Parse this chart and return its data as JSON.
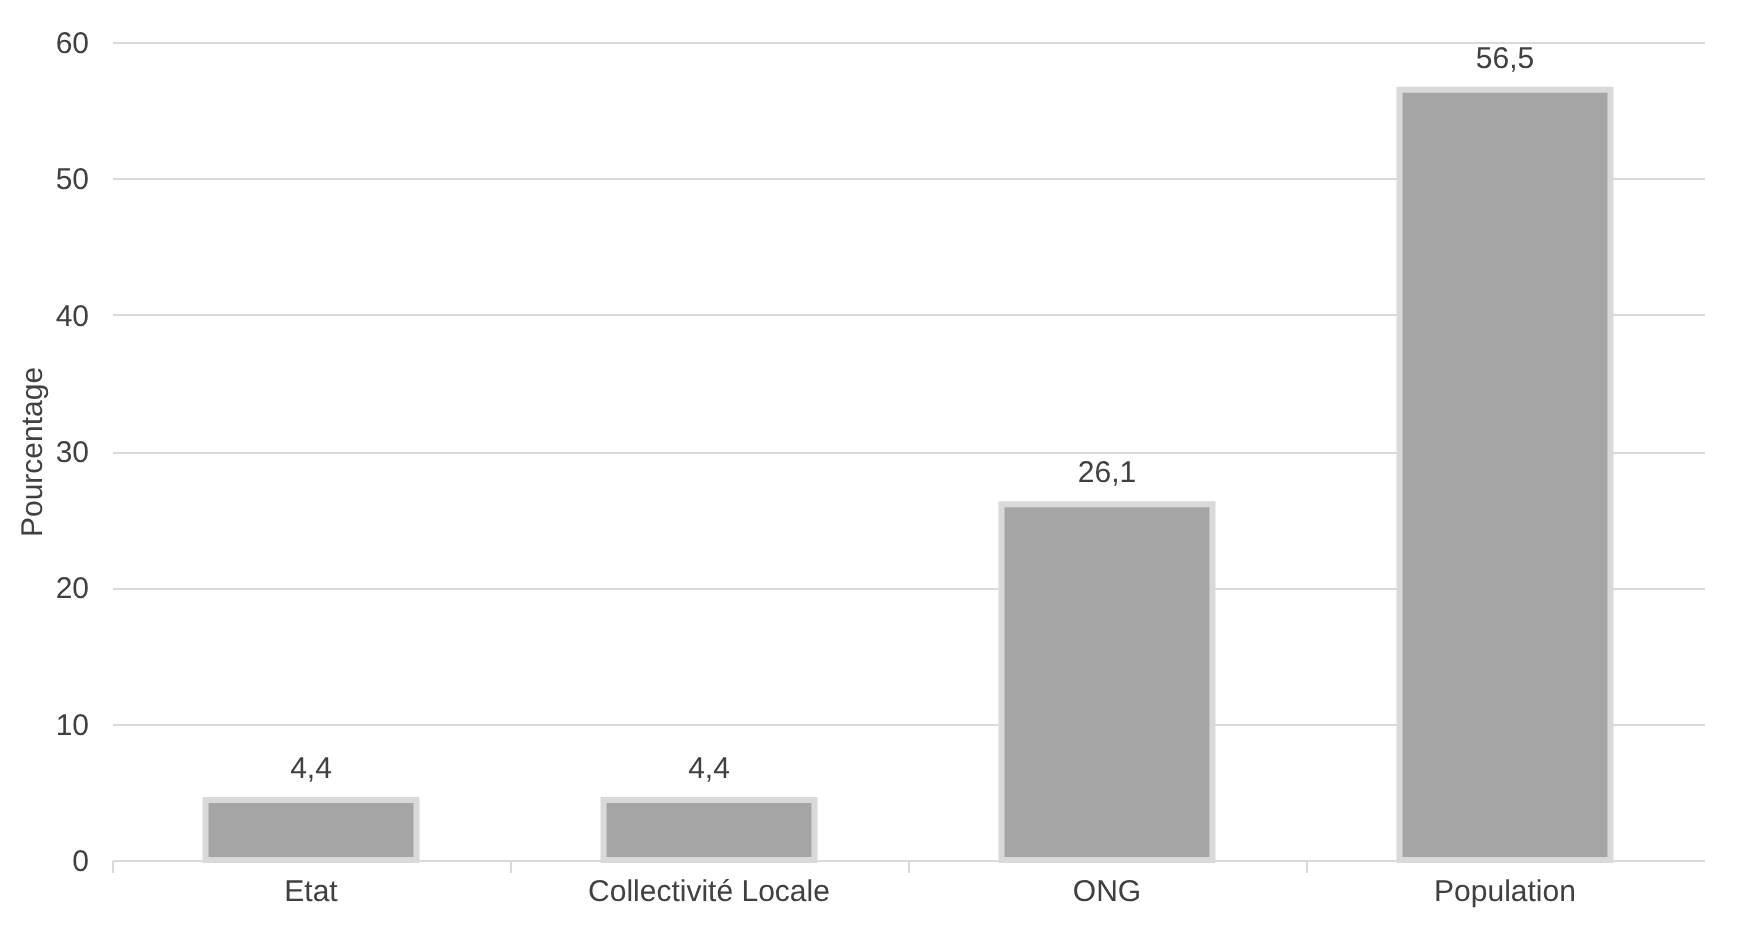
{
  "chart_data": {
    "type": "bar",
    "ylabel": "Pourcentage",
    "categories": [
      "Etat",
      "Collectivité Locale",
      "ONG",
      "Population"
    ],
    "values": [
      4.4,
      4.4,
      26.1,
      56.5
    ],
    "value_labels": [
      "4,4",
      "4,4",
      "26,1",
      "56,5"
    ],
    "color": "#a5a5a5",
    "ylim": [
      0,
      60
    ],
    "yticks": [
      0,
      10,
      20,
      30,
      40,
      50,
      60
    ],
    "grid": "y"
  }
}
